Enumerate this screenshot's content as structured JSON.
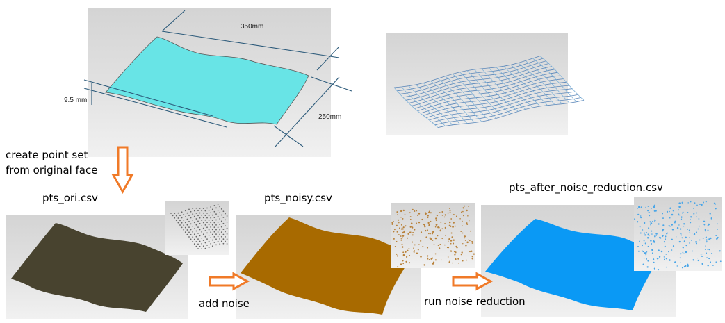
{
  "top_model": {
    "dim_length": "350mm",
    "dim_width": "250mm",
    "dim_thickness": "9.5 mm",
    "surface_color": "#68e4e6"
  },
  "steps": {
    "create_label_line1": "create point set",
    "create_label_line2": "from original face",
    "add_noise_label": "add noise",
    "reduce_label": "run noise reduction"
  },
  "panels": [
    {
      "caption": "pts_ori.csv",
      "color": "#48432f",
      "inset_dot_color": "#666666"
    },
    {
      "caption": "pts_noisy.csv",
      "color": "#a86a00",
      "inset_dot_color": "#b8813a"
    },
    {
      "caption": "pts_after_noise_reduction.csv",
      "color": "#0a99f5",
      "inset_dot_color": "#4aa6e8"
    }
  ],
  "arrow_color": "#f07a28"
}
